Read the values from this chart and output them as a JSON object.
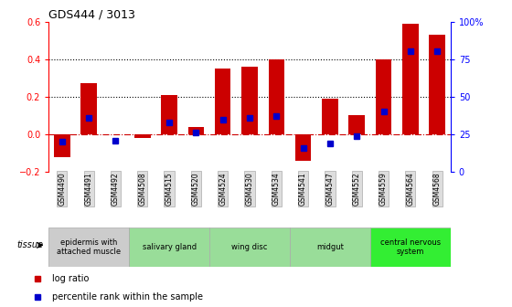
{
  "title": "GDS444 / 3013",
  "samples": [
    "GSM4490",
    "GSM4491",
    "GSM4492",
    "GSM4508",
    "GSM4515",
    "GSM4520",
    "GSM4524",
    "GSM4530",
    "GSM4534",
    "GSM4541",
    "GSM4547",
    "GSM4552",
    "GSM4559",
    "GSM4564",
    "GSM4568"
  ],
  "log_ratio": [
    -0.12,
    0.27,
    0.0,
    -0.02,
    0.21,
    0.04,
    0.35,
    0.36,
    0.4,
    -0.14,
    0.19,
    0.1,
    0.4,
    0.59,
    0.53
  ],
  "percentile_pct": [
    20,
    36,
    21,
    null,
    33,
    26,
    35,
    36,
    37,
    16,
    19,
    24,
    40,
    80,
    80
  ],
  "bar_color": "#cc0000",
  "dot_color": "#0000cc",
  "ylim_left": [
    -0.2,
    0.6
  ],
  "ylim_right": [
    0,
    100
  ],
  "yticks_left": [
    -0.2,
    0.0,
    0.2,
    0.4,
    0.6
  ],
  "yticks_right": [
    0,
    25,
    50,
    75,
    100
  ],
  "ytick_labels_right": [
    "0",
    "25",
    "50",
    "75",
    "100%"
  ],
  "hlines_dotted": [
    0.2,
    0.4
  ],
  "zero_line_color": "#cc0000",
  "hline_color": "#000000",
  "tissue_groups": [
    {
      "label": "epidermis with\nattached muscle",
      "start": 0,
      "end": 3,
      "color": "#cccccc"
    },
    {
      "label": "salivary gland",
      "start": 3,
      "end": 6,
      "color": "#99dd99"
    },
    {
      "label": "wing disc",
      "start": 6,
      "end": 9,
      "color": "#99dd99"
    },
    {
      "label": "midgut",
      "start": 9,
      "end": 12,
      "color": "#99dd99"
    },
    {
      "label": "central nervous\nsystem",
      "start": 12,
      "end": 15,
      "color": "#33ee33"
    }
  ],
  "tissue_label": "tissue",
  "legend_log_ratio": "log ratio",
  "legend_percentile": "percentile rank within the sample"
}
